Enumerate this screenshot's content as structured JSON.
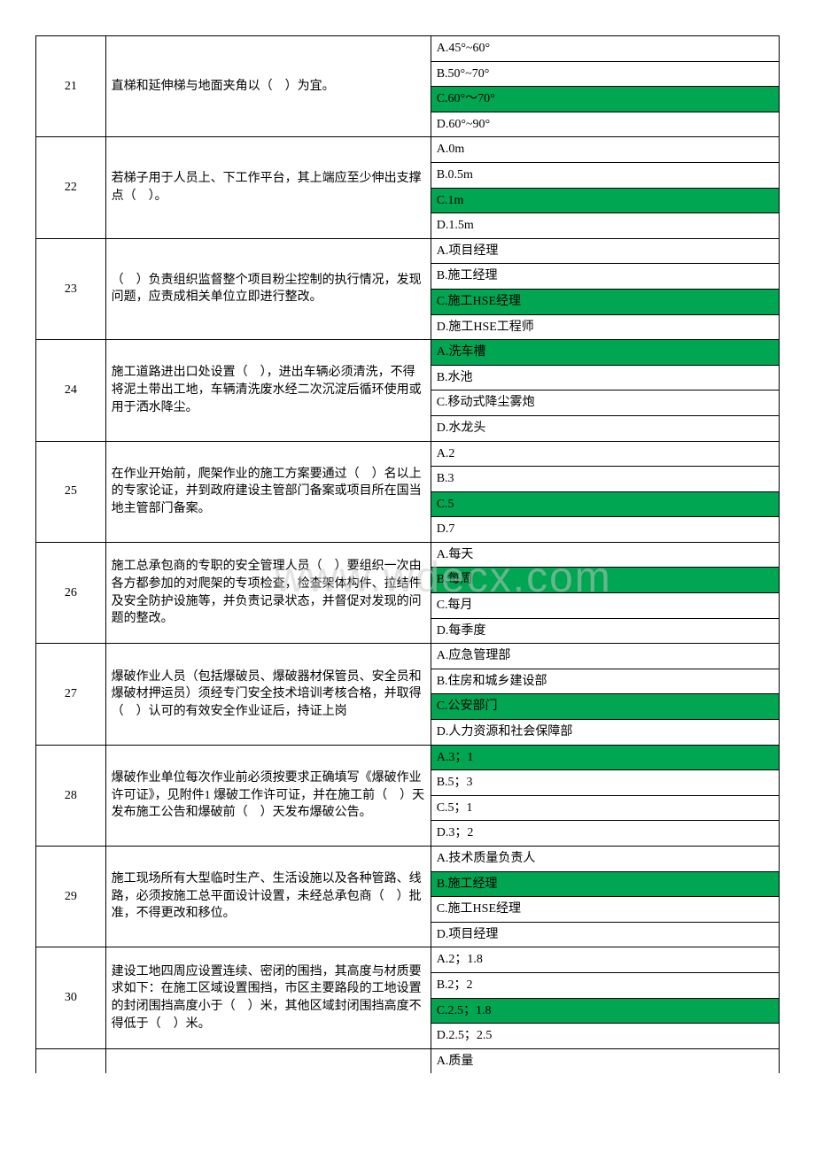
{
  "watermark": "www.wdecx.com",
  "colors": {
    "correct_bg": "#00a651",
    "border": "#000000",
    "text": "#000000",
    "watermark": "rgba(200,200,200,0.5)"
  },
  "questions": [
    {
      "num": "21",
      "text": "直梯和延伸梯与地面夹角以（　）为宜。",
      "options": [
        {
          "label": "A.45°~60°",
          "correct": false
        },
        {
          "label": "B.50°~70°",
          "correct": false
        },
        {
          "label": "C.60°～70°",
          "correct": true
        },
        {
          "label": "D.60°~90°",
          "correct": false
        }
      ]
    },
    {
      "num": "22",
      "text": "若梯子用于人员上、下工作平台，其上端应至少伸出支撑点（　）。",
      "options": [
        {
          "label": "A.0m",
          "correct": false
        },
        {
          "label": "B.0.5m",
          "correct": false
        },
        {
          "label": "C.1m",
          "correct": true
        },
        {
          "label": "D.1.5m",
          "correct": false
        }
      ]
    },
    {
      "num": "23",
      "text": "（　）负责组织监督整个项目粉尘控制的执行情况，发现问题，应责成相关单位立即进行整改。",
      "options": [
        {
          "label": "A.项目经理",
          "correct": false
        },
        {
          "label": "B.施工经理",
          "correct": false
        },
        {
          "label": "C.施工HSE经理",
          "correct": true
        },
        {
          "label": "D.施工HSE工程师",
          "correct": false
        }
      ]
    },
    {
      "num": "24",
      "text": "施工道路进出口处设置（　），进出车辆必须清洗，不得将泥土带出工地，车辆清洗废水经二次沉淀后循环使用或用于洒水降尘。",
      "options": [
        {
          "label": "A.洗车槽",
          "correct": true
        },
        {
          "label": "B.水池",
          "correct": false
        },
        {
          "label": "C.移动式降尘雾炮",
          "correct": false
        },
        {
          "label": "D.水龙头",
          "correct": false
        }
      ]
    },
    {
      "num": "25",
      "text": "在作业开始前，爬架作业的施工方案要通过（　）名以上的专家论证，并到政府建设主管部门备案或项目所在国当地主管部门备案。",
      "options": [
        {
          "label": "A.2",
          "correct": false
        },
        {
          "label": "B.3",
          "correct": false
        },
        {
          "label": "C.5",
          "correct": true
        },
        {
          "label": "D.7",
          "correct": false
        }
      ]
    },
    {
      "num": "26",
      "text": "施工总承包商的专职的安全管理人员（　）要组织一次由各方都参加的对爬架的专项检查，检查架体构件、拉结件及安全防护设施等，并负责记录状态，并督促对发现的问题的整改。",
      "options": [
        {
          "label": "A.每天",
          "correct": false
        },
        {
          "label": "B.每周",
          "correct": true
        },
        {
          "label": "C.每月",
          "correct": false
        },
        {
          "label": "D.每季度",
          "correct": false
        }
      ]
    },
    {
      "num": "27",
      "text": "爆破作业人员（包括爆破员、爆破器材保管员、安全员和爆破材押运员）须经专门安全技术培训考核合格，并取得（　）认可的有效安全作业证后，持证上岗",
      "options": [
        {
          "label": "A.应急管理部",
          "correct": false
        },
        {
          "label": "B.住房和城乡建设部",
          "correct": false
        },
        {
          "label": "C.公安部门",
          "correct": true
        },
        {
          "label": "D.人力资源和社会保障部",
          "correct": false
        }
      ]
    },
    {
      "num": "28",
      "text": "爆破作业单位每次作业前必须按要求正确填写《爆破作业许可证》，见附件1 爆破工作许可证，并在施工前（　）天发布施工公告和爆破前（　）天发布爆破公告。",
      "options": [
        {
          "label": "A.3；1",
          "correct": true
        },
        {
          "label": "B.5；3",
          "correct": false
        },
        {
          "label": "C.5；1",
          "correct": false
        },
        {
          "label": "D.3；2",
          "correct": false
        }
      ]
    },
    {
      "num": "29",
      "text": "施工现场所有大型临时生产、生活设施以及各种管路、线路，必须按施工总平面设计设置，未经总承包商（　）批准，不得更改和移位。",
      "options": [
        {
          "label": "A.技术质量负责人",
          "correct": false
        },
        {
          "label": "B.施工经理",
          "correct": true
        },
        {
          "label": "C.施工HSE经理",
          "correct": false
        },
        {
          "label": "D.项目经理",
          "correct": false
        }
      ]
    },
    {
      "num": "30",
      "text": "建设工地四周应设置连续、密闭的围挡，其高度与材质要求如下：在施工区域设置围挡，市区主要路段的工地设置的封闭围挡高度小于（　）米，其他区域封闭围挡高度不得低于（　）米。",
      "options": [
        {
          "label": "A.2；1.8",
          "correct": false
        },
        {
          "label": "B.2；2",
          "correct": false
        },
        {
          "label": "C.2.5；1.8",
          "correct": true
        },
        {
          "label": "D.2.5；2.5",
          "correct": false
        }
      ]
    }
  ],
  "partial_row": {
    "option": "A.质量"
  }
}
